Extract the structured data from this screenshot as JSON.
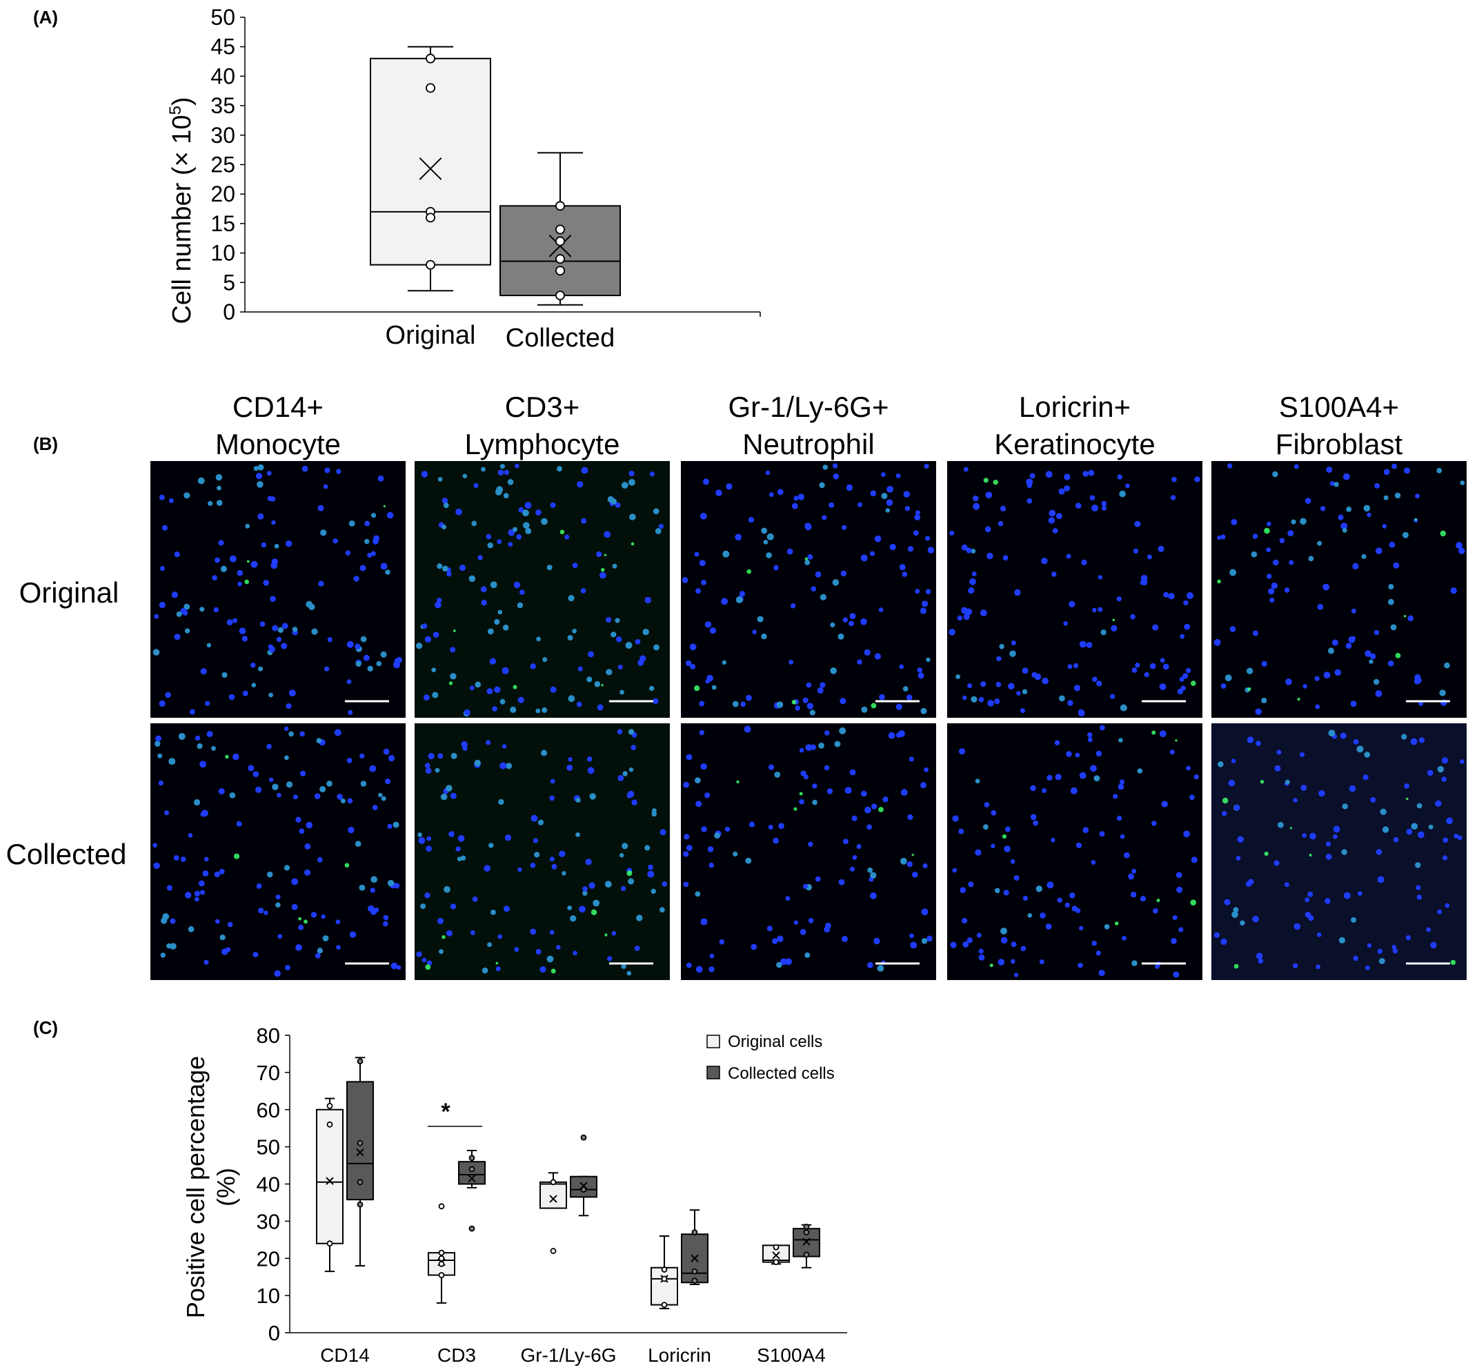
{
  "panels": {
    "a": {
      "label": "(A)"
    },
    "b": {
      "label": "(B)"
    },
    "c": {
      "label": "(C)"
    }
  },
  "colors": {
    "original_fill": "#f2f2f2",
    "collected_fill": "#7f7f7f",
    "outline": "#000000",
    "nucleus_blue": "#1f3cff",
    "marker_green": "#3cff6a",
    "micrograph_bg": "#000008"
  },
  "chart_data": [
    {
      "id": "panel-a",
      "type": "box",
      "ylabel_main": "Cell number (× 10",
      "ylabel_sup": "5",
      "ylabel_close": ")",
      "xlabel": "",
      "ylim": [
        0,
        50
      ],
      "yticks": [
        0,
        5,
        10,
        15,
        20,
        25,
        30,
        35,
        40,
        45,
        50
      ],
      "categories": [
        "Original",
        "Collected"
      ],
      "boxes": [
        {
          "name": "Original",
          "series": "original",
          "whisker_low": 3.6,
          "q1": 8,
          "median": 17,
          "q3": 43,
          "whisker_high": 45,
          "mean": 24.3,
          "points": [
            43,
            38,
            17,
            16,
            8
          ]
        },
        {
          "name": "Collected",
          "series": "collected",
          "whisker_low": 1.2,
          "q1": 2.8,
          "median": 8.6,
          "q3": 18,
          "whisker_high": 27,
          "mean": 11.2,
          "points": [
            18,
            14,
            12,
            9,
            7,
            2.8
          ]
        }
      ]
    },
    {
      "id": "panel-c",
      "type": "box",
      "ylabel_line1": "Positive cell percentage",
      "ylabel_line2": "(%)",
      "xlabel": "",
      "ylim": [
        0,
        80
      ],
      "yticks": [
        0,
        10,
        20,
        30,
        40,
        50,
        60,
        70,
        80
      ],
      "categories": [
        "CD14",
        "CD3",
        "Gr-1/Ly-6G",
        "Loricrin",
        "S100A4"
      ],
      "legend": {
        "position": "top-right",
        "entries": [
          "Original cells",
          "Collected cells"
        ]
      },
      "significance": [
        {
          "category": "CD3",
          "label": "*"
        }
      ],
      "groups": [
        {
          "category": "CD14",
          "original": {
            "whisker_low": 16.5,
            "q1": 24,
            "median": 40.5,
            "q3": 60,
            "whisker_high": 63,
            "mean": 40.8,
            "points": [
              61,
              56,
              24
            ]
          },
          "collected": {
            "whisker_low": 18,
            "q1": 35.8,
            "median": 45.5,
            "q3": 67.5,
            "whisker_high": 74,
            "mean": 48.5,
            "points": [
              73,
              51,
              40.5,
              34.5
            ]
          }
        },
        {
          "category": "CD3",
          "original": {
            "whisker_low": 8,
            "q1": 15.5,
            "median": 19.5,
            "q3": 21.5,
            "whisker_high": 21.5,
            "mean": 19,
            "points": [
              34,
              21.5,
              20,
              18.5,
              15.5
            ]
          },
          "collected": {
            "whisker_low": 39,
            "q1": 40,
            "median": 42.5,
            "q3": 46,
            "whisker_high": 49,
            "mean": 41.5,
            "points": [
              47,
              44,
              28
            ]
          }
        },
        {
          "category": "Gr-1/Ly-6G",
          "original": {
            "whisker_low": 33.5,
            "q1": 33.5,
            "median": 40,
            "q3": 40.5,
            "whisker_high": 43,
            "mean": 36,
            "points": [
              40.5,
              22
            ]
          },
          "collected": {
            "whisker_low": 31.5,
            "q1": 36.5,
            "median": 38.5,
            "q3": 42,
            "whisker_high": 42,
            "mean": 39.5,
            "points": [
              52.5,
              38.5
            ]
          }
        },
        {
          "category": "Loricrin",
          "original": {
            "whisker_low": 6.5,
            "q1": 7.5,
            "median": 14.5,
            "q3": 17.5,
            "whisker_high": 26,
            "mean": 14.5,
            "points": [
              17,
              14.5,
              7.5
            ]
          },
          "collected": {
            "whisker_low": 13,
            "q1": 13.5,
            "median": 16,
            "q3": 26.5,
            "whisker_high": 33,
            "mean": 20,
            "points": [
              27,
              16.5,
              14
            ]
          }
        },
        {
          "category": "S100A4",
          "original": {
            "whisker_low": 18.5,
            "q1": 19,
            "median": 19.5,
            "q3": 23.5,
            "whisker_high": 23.5,
            "mean": 20.8,
            "points": [
              23,
              19
            ]
          },
          "collected": {
            "whisker_low": 17.5,
            "q1": 20.5,
            "median": 25,
            "q3": 28,
            "whisker_high": 29,
            "mean": 24.5,
            "points": [
              28.5,
              27,
              21
            ]
          }
        }
      ]
    }
  ],
  "micrographs": {
    "columns": [
      {
        "line1": "CD14+",
        "line2": "Monocyte",
        "green_level": 0.35
      },
      {
        "line1": "CD3+",
        "line2": "Lymphocyte",
        "green_level": 0.45
      },
      {
        "line1": "Gr-1/Ly-6G+",
        "line2": "Neutrophil",
        "green_level": 0.2
      },
      {
        "line1": "Loricrin+",
        "line2": "Keratinocyte",
        "green_level": 0.1
      },
      {
        "line1": "S100A4+",
        "line2": "Fibroblast",
        "green_level": 0.25
      }
    ],
    "rows": [
      "Original",
      "Collected"
    ]
  }
}
